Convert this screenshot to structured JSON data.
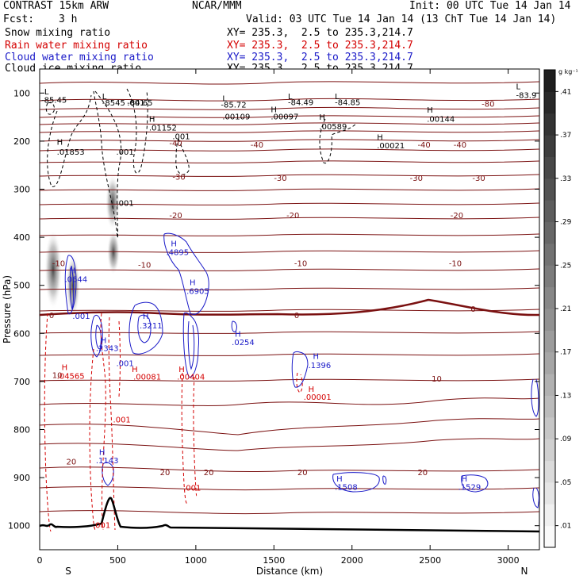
{
  "header": {
    "model": "CONTRAST 15km ARW",
    "center": "NCAR/MMM",
    "init": "Init: 00 UTC Tue 14 Jan 14",
    "fcst_label": "Fcst:",
    "fcst_value": "3 h",
    "valid": "Valid: 03 UTC Tue 14 Jan 14 (13 ChT Tue 14 Jan 14)"
  },
  "fields": [
    {
      "name": "Snow mixing ratio",
      "xy": "XY= 235.3,  2.5 to 235.3,214.7",
      "color": "#000000"
    },
    {
      "name": "Rain water mixing ratio",
      "xy": "XY= 235.3,  2.5 to 235.3,214.7",
      "color": "#d40000"
    },
    {
      "name": "Cloud water mixing ratio",
      "xy": "XY= 235.3,  2.5 to 235.3,214.7",
      "color": "#1a1ac8"
    },
    {
      "name": "Cloud ice mixing ratio",
      "xy": "XY= 235.3,  2.5 to 235.3,214.7",
      "color": "#000000"
    }
  ],
  "chart_data": {
    "type": "contour cross-section",
    "xlabel": "Distance (km)",
    "ylabel": "Pressure (hPa)",
    "xlim": [
      0,
      3200
    ],
    "ylim": [
      1050,
      50
    ],
    "x_ticks": [
      0,
      500,
      1000,
      1500,
      2000,
      2500,
      3000
    ],
    "y_ticks": [
      100,
      200,
      300,
      400,
      500,
      600,
      700,
      800,
      900,
      1000
    ],
    "x_end_labels": {
      "left": "S",
      "right": "N"
    },
    "colorbar": {
      "unit": "g kg⁻¹",
      "ticks": [
        0.01,
        0.05,
        0.09,
        0.13,
        0.17,
        0.21,
        0.25,
        0.29,
        0.33,
        0.37,
        0.41
      ],
      "tick_labels": [
        ".01",
        ".05",
        ".09",
        ".13",
        ".17",
        ".21",
        ".25",
        ".29",
        ".33",
        ".37",
        ".41"
      ]
    },
    "temperature_labels": [
      {
        "x": 2830,
        "p": 128,
        "t": "-80"
      },
      {
        "x": 830,
        "p": 210,
        "t": "-40"
      },
      {
        "x": 1350,
        "p": 213,
        "t": "-40"
      },
      {
        "x": 2420,
        "p": 213,
        "t": "-40"
      },
      {
        "x": 2650,
        "p": 213,
        "t": "-40"
      },
      {
        "x": 850,
        "p": 280,
        "t": "-30"
      },
      {
        "x": 1500,
        "p": 283,
        "t": "-30"
      },
      {
        "x": 2370,
        "p": 283,
        "t": "-30"
      },
      {
        "x": 2770,
        "p": 283,
        "t": "-30"
      },
      {
        "x": 830,
        "p": 360,
        "t": "-20"
      },
      {
        "x": 1580,
        "p": 360,
        "t": "-20"
      },
      {
        "x": 2630,
        "p": 360,
        "t": "-20"
      },
      {
        "x": 80,
        "p": 460,
        "t": "-10"
      },
      {
        "x": 630,
        "p": 463,
        "t": "-10"
      },
      {
        "x": 1630,
        "p": 460,
        "t": "-10"
      },
      {
        "x": 2620,
        "p": 460,
        "t": "-10"
      },
      {
        "x": 60,
        "p": 568,
        "t": "0"
      },
      {
        "x": 1630,
        "p": 568,
        "t": "0"
      },
      {
        "x": 2760,
        "p": 555,
        "t": "0"
      },
      {
        "x": 80,
        "p": 693,
        "t": "10"
      },
      {
        "x": 2510,
        "p": 700,
        "t": "10"
      },
      {
        "x": 170,
        "p": 873,
        "t": "20"
      },
      {
        "x": 770,
        "p": 895,
        "t": "20"
      },
      {
        "x": 1050,
        "p": 895,
        "t": "20"
      },
      {
        "x": 1650,
        "p": 895,
        "t": "20"
      },
      {
        "x": 2420,
        "p": 895,
        "t": "20"
      }
    ],
    "snow_ice_labels": [
      {
        "x": 110,
        "p": 208,
        "t": "H"
      },
      {
        "x": 110,
        "p": 228,
        "t": ".01853"
      },
      {
        "x": 30,
        "p": 103,
        "t": "L"
      },
      {
        "x": 10,
        "p": 120,
        "t": "-85.45"
      },
      {
        "x": 400,
        "p": 113,
        "t": "L"
      },
      {
        "x": 400,
        "p": 126,
        "t": "-8545"
      },
      {
        "x": 560,
        "p": 126,
        "t": ".001"
      },
      {
        "x": 560,
        "p": 126,
        "t": "-84.65"
      },
      {
        "x": 700,
        "p": 160,
        "t": "H"
      },
      {
        "x": 700,
        "p": 178,
        "t": ".01152"
      },
      {
        "x": 850,
        "p": 196,
        "t": ".001"
      },
      {
        "x": 490,
        "p": 228,
        "t": ".001"
      },
      {
        "x": 490,
        "p": 335,
        "t": ".001"
      },
      {
        "x": 1170,
        "p": 117,
        "t": "L"
      },
      {
        "x": 1160,
        "p": 130,
        "t": "-85.72"
      },
      {
        "x": 1170,
        "p": 155,
        "t": ".00109"
      },
      {
        "x": 1480,
        "p": 140,
        "t": "H"
      },
      {
        "x": 1480,
        "p": 155,
        "t": ".00097"
      },
      {
        "x": 1590,
        "p": 113,
        "t": "L"
      },
      {
        "x": 1590,
        "p": 125,
        "t": "-84.49"
      },
      {
        "x": 1890,
        "p": 113,
        "t": "L"
      },
      {
        "x": 1890,
        "p": 125,
        "t": "-84.85"
      },
      {
        "x": 1790,
        "p": 156,
        "t": "H"
      },
      {
        "x": 1790,
        "p": 175,
        "t": ".00589"
      },
      {
        "x": 2480,
        "p": 141,
        "t": "H"
      },
      {
        "x": 2480,
        "p": 160,
        "t": ".00144"
      },
      {
        "x": 2160,
        "p": 198,
        "t": "H"
      },
      {
        "x": 2160,
        "p": 215,
        "t": ".00021"
      },
      {
        "x": 3050,
        "p": 92,
        "t": "L"
      },
      {
        "x": 3050,
        "p": 110,
        "t": "-83.9"
      }
    ],
    "rain_labels": [
      {
        "x": 140,
        "p": 676,
        "t": "H"
      },
      {
        "x": 110,
        "p": 694,
        "t": ".04565"
      },
      {
        "x": 590,
        "p": 680,
        "t": "H"
      },
      {
        "x": 600,
        "p": 696,
        "t": ".00081"
      },
      {
        "x": 890,
        "p": 680,
        "t": "H"
      },
      {
        "x": 880,
        "p": 696,
        "t": ".00404"
      },
      {
        "x": 470,
        "p": 785,
        "t": ".001"
      },
      {
        "x": 920,
        "p": 927,
        "t": ".001"
      },
      {
        "x": 1720,
        "p": 722,
        "t": "H"
      },
      {
        "x": 1690,
        "p": 738,
        "t": ".00001"
      },
      {
        "x": 340,
        "p": 1005,
        "t": ".001"
      }
    ],
    "cloud_water_labels": [
      {
        "x": 190,
        "p": 475,
        "t": "H"
      },
      {
        "x": 160,
        "p": 493,
        "t": ".0644"
      },
      {
        "x": 210,
        "p": 570,
        "t": ".001"
      },
      {
        "x": 390,
        "p": 620,
        "t": "H"
      },
      {
        "x": 360,
        "p": 637,
        "t": ".2343"
      },
      {
        "x": 660,
        "p": 570,
        "t": "H"
      },
      {
        "x": 640,
        "p": 590,
        "t": ".3211"
      },
      {
        "x": 840,
        "p": 419,
        "t": "H"
      },
      {
        "x": 810,
        "p": 437,
        "t": ".4895"
      },
      {
        "x": 960,
        "p": 500,
        "t": "H"
      },
      {
        "x": 940,
        "p": 518,
        "t": ".6905"
      },
      {
        "x": 490,
        "p": 668,
        "t": ".001"
      },
      {
        "x": 1250,
        "p": 607,
        "t": "H"
      },
      {
        "x": 1230,
        "p": 624,
        "t": ".0254"
      },
      {
        "x": 1750,
        "p": 653,
        "t": "H"
      },
      {
        "x": 1720,
        "p": 672,
        "t": ".1396"
      },
      {
        "x": 380,
        "p": 853,
        "t": "H"
      },
      {
        "x": 360,
        "p": 870,
        "t": ".1143"
      },
      {
        "x": 1900,
        "p": 908,
        "t": "H"
      },
      {
        "x": 1890,
        "p": 925,
        "t": ".1508"
      },
      {
        "x": 2700,
        "p": 908,
        "t": "H"
      },
      {
        "x": 2680,
        "p": 925,
        "t": ".1529"
      }
    ]
  }
}
